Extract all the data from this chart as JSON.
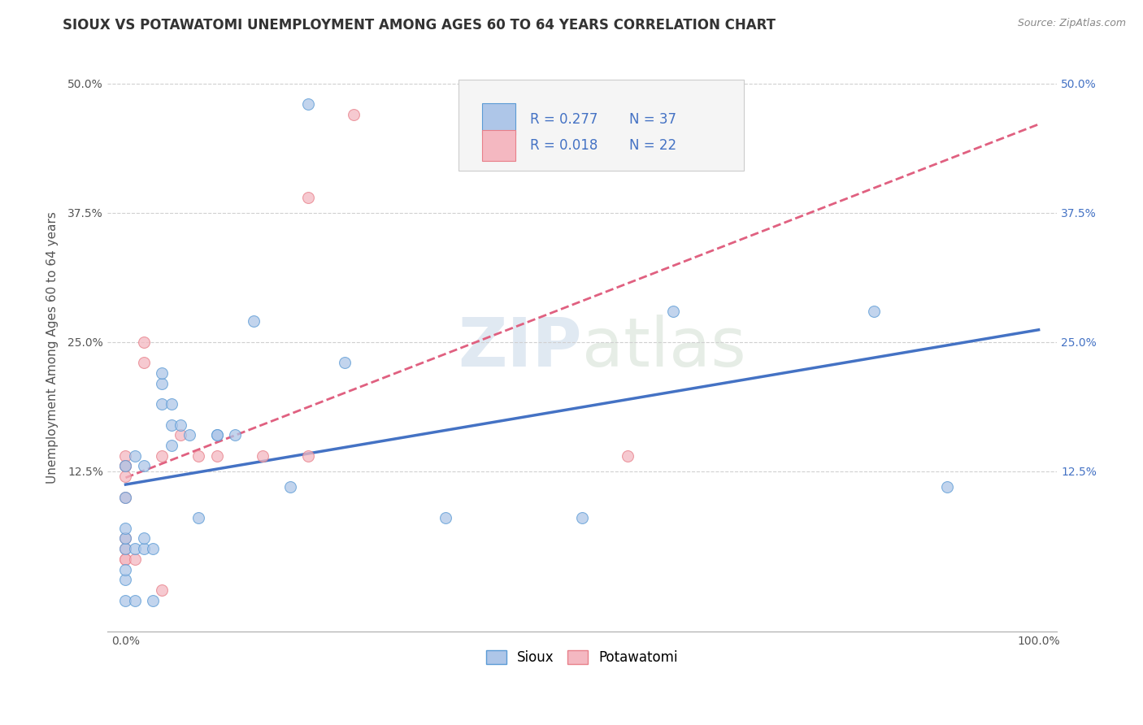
{
  "title": "SIOUX VS POTAWATOMI UNEMPLOYMENT AMONG AGES 60 TO 64 YEARS CORRELATION CHART",
  "source_text": "Source: ZipAtlas.com",
  "xlabel": "",
  "ylabel": "Unemployment Among Ages 60 to 64 years",
  "xlim": [
    -0.02,
    1.02
  ],
  "ylim": [
    -0.03,
    0.52
  ],
  "xtick_labels": [
    "0.0%",
    "100.0%"
  ],
  "ytick_labels": [
    "12.5%",
    "25.0%",
    "37.5%",
    "50.0%"
  ],
  "ytick_values": [
    0.125,
    0.25,
    0.375,
    0.5
  ],
  "xtick_values": [
    0.0,
    1.0
  ],
  "grid_color": "#d0d0d0",
  "background_color": "#ffffff",
  "watermark_zip": "ZIP",
  "watermark_atlas": "atlas",
  "sioux_color": "#aec6e8",
  "sioux_edge_color": "#5b9bd5",
  "potawatomi_color": "#f4b8c1",
  "potawatomi_edge_color": "#e8808a",
  "sioux_R": 0.277,
  "sioux_N": 37,
  "potawatomi_R": 0.018,
  "potawatomi_N": 22,
  "sioux_line_color": "#4472c4",
  "potawatomi_line_color": "#e06080",
  "sioux_x": [
    0.0,
    0.0,
    0.0,
    0.0,
    0.0,
    0.0,
    0.0,
    0.0,
    0.01,
    0.01,
    0.01,
    0.02,
    0.02,
    0.02,
    0.03,
    0.03,
    0.04,
    0.04,
    0.04,
    0.05,
    0.05,
    0.05,
    0.06,
    0.07,
    0.08,
    0.1,
    0.1,
    0.12,
    0.14,
    0.18,
    0.2,
    0.24,
    0.35,
    0.5,
    0.6,
    0.82,
    0.9
  ],
  "sioux_y": [
    0.0,
    0.02,
    0.03,
    0.05,
    0.06,
    0.07,
    0.1,
    0.13,
    0.0,
    0.05,
    0.14,
    0.05,
    0.06,
    0.13,
    0.0,
    0.05,
    0.19,
    0.21,
    0.22,
    0.19,
    0.17,
    0.15,
    0.17,
    0.16,
    0.08,
    0.16,
    0.16,
    0.16,
    0.27,
    0.11,
    0.48,
    0.23,
    0.08,
    0.08,
    0.28,
    0.28,
    0.11
  ],
  "potawatomi_x": [
    0.0,
    0.0,
    0.0,
    0.0,
    0.0,
    0.0,
    0.0,
    0.0,
    0.0,
    0.01,
    0.02,
    0.02,
    0.04,
    0.04,
    0.06,
    0.08,
    0.1,
    0.15,
    0.2,
    0.2,
    0.25,
    0.55
  ],
  "potawatomi_y": [
    0.14,
    0.13,
    0.13,
    0.12,
    0.1,
    0.06,
    0.05,
    0.04,
    0.04,
    0.04,
    0.25,
    0.23,
    0.14,
    0.01,
    0.16,
    0.14,
    0.14,
    0.14,
    0.14,
    0.39,
    0.47,
    0.14
  ],
  "legend_label_sioux": "Sioux",
  "legend_label_potawatomi": "Potawatomi",
  "marker_size": 100,
  "marker_alpha": 0.75,
  "title_fontsize": 12,
  "axis_label_fontsize": 11,
  "tick_fontsize": 10,
  "legend_fontsize": 12,
  "right_tick_color": "#4472c4"
}
